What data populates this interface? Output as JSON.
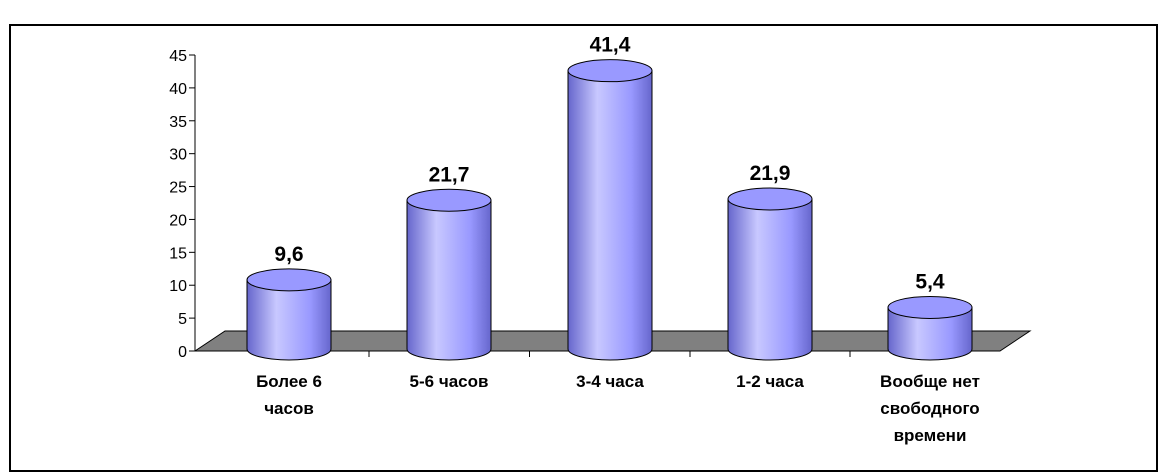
{
  "chart_title": "",
  "chart_data": {
    "type": "bar",
    "categories": [
      "Более 6 часов",
      "5-6 часов",
      "3-4 часа",
      "1-2 часа",
      "Вообще нет свободного времени"
    ],
    "category_lines": [
      [
        "Более 6",
        "часов"
      ],
      [
        "5-6 часов"
      ],
      [
        "3-4 часа"
      ],
      [
        "1-2 часа"
      ],
      [
        "Вообще нет",
        "свободного",
        "времени"
      ]
    ],
    "values": [
      9.6,
      21.7,
      41.4,
      21.9,
      5.4
    ],
    "value_labels": [
      "9,6",
      "21,7",
      "41,4",
      "21,9",
      "5,4"
    ],
    "yticks": [
      0,
      5,
      10,
      15,
      20,
      25,
      30,
      35,
      40,
      45
    ],
    "ylim": [
      0,
      45
    ],
    "xlabel": "",
    "ylabel": "",
    "grid": false,
    "legend": "none",
    "colors": {
      "bar_fill": "#9999ff",
      "bar_dark": "#6666cc",
      "bar_light": "#c8c8ff",
      "floor_fill": "#808080",
      "outline": "#000000"
    }
  }
}
